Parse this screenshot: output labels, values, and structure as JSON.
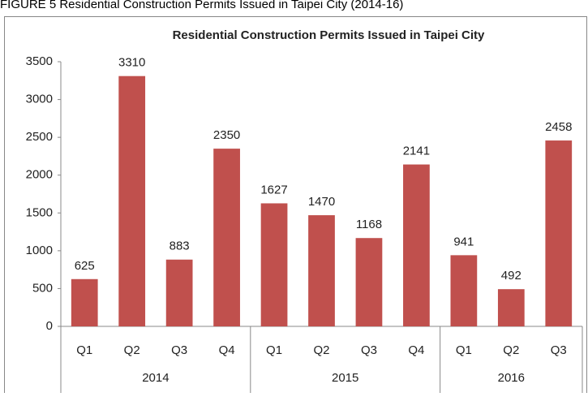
{
  "caption": "FIGURE 5 Residential Construction Permits Issued in Taipei City (2014-16)",
  "chart_data": {
    "type": "bar",
    "title": "Residential Construction Permits Issued in Taipei City",
    "groups": [
      {
        "label": "2014",
        "categories": [
          "Q1",
          "Q2",
          "Q3",
          "Q4"
        ],
        "values": [
          625,
          3310,
          883,
          2350
        ]
      },
      {
        "label": "2015",
        "categories": [
          "Q1",
          "Q2",
          "Q3",
          "Q4"
        ],
        "values": [
          1627,
          1470,
          1168,
          2141
        ]
      },
      {
        "label": "2016",
        "categories": [
          "Q1",
          "Q2",
          "Q3"
        ],
        "values": [
          941,
          492,
          2458
        ]
      }
    ],
    "color": "#c0504d",
    "ylim": [
      0,
      3500
    ],
    "yticks": [
      0,
      500,
      1000,
      1500,
      2000,
      2500,
      3000,
      3500
    ],
    "grid": false
  }
}
